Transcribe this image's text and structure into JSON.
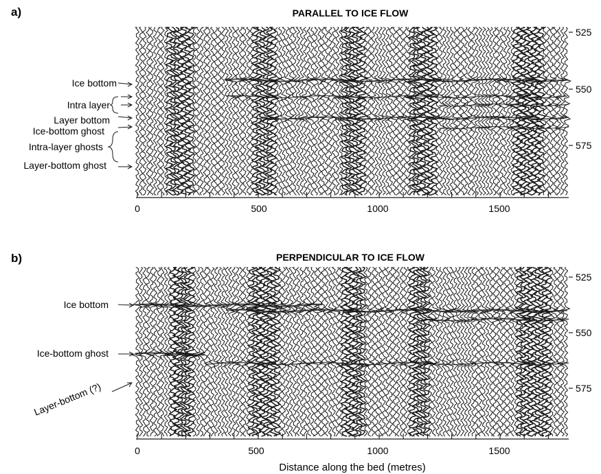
{
  "panels": [
    {
      "letter": "a)",
      "title": "PARALLEL TO ICE FLOW",
      "depth_ticks": [
        "525",
        "550",
        "575"
      ],
      "x_ticks": [
        "0",
        "500",
        "1000",
        "1500"
      ],
      "annotations": [
        "Ice bottom",
        "Intra layer",
        "Layer bottom",
        "Ice-bottom ghost",
        "Intra-layer ghosts",
        "Layer-bottom ghost"
      ]
    },
    {
      "letter": "b)",
      "title": "PERPENDICULAR TO ICE FLOW",
      "depth_ticks": [
        "525",
        "550",
        "575"
      ],
      "x_ticks": [
        "0",
        "500",
        "1000",
        "1500"
      ],
      "annotations": [
        "Ice bottom",
        "Ice-bottom ghost",
        "Layer-bottom (?)"
      ]
    }
  ],
  "x_axis_title": "Distance along the bed (metres)",
  "colors": {
    "ink": "#1a1a1a",
    "background": "#ffffff"
  }
}
